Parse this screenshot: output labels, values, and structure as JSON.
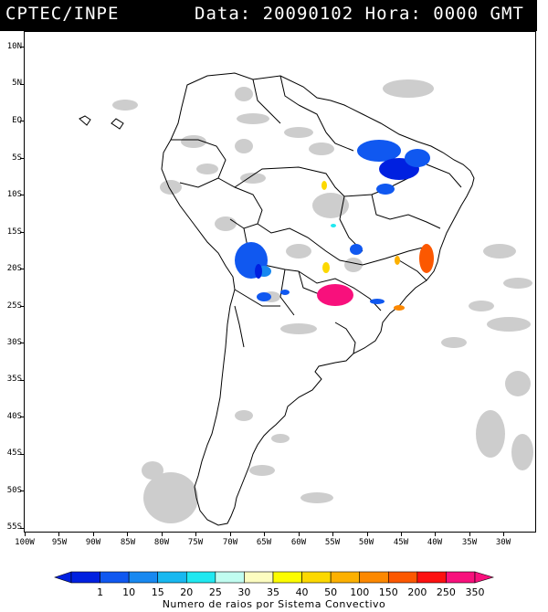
{
  "header": {
    "source": "CPTEC/INPE",
    "date_label": "Data:",
    "date_value": "20090102",
    "hour_label": "Hora:",
    "hour_value": "0000",
    "tz": "GMT"
  },
  "map": {
    "lat_labels": [
      "10N",
      "5N",
      "EQ",
      "5S",
      "10S",
      "15S",
      "20S",
      "25S",
      "30S",
      "35S",
      "40S",
      "45S",
      "50S",
      "55S"
    ],
    "lon_labels": [
      "100W",
      "95W",
      "90W",
      "85W",
      "80W",
      "75W",
      "70W",
      "65W",
      "60W",
      "55W",
      "50W",
      "45W",
      "40W",
      "35W",
      "30W"
    ]
  },
  "legend": {
    "caption": "Numero de raios por Sistema Convectivo",
    "values": [
      "1",
      "10",
      "15",
      "20",
      "25",
      "30",
      "35",
      "40",
      "50",
      "100",
      "150",
      "200",
      "250",
      "350"
    ],
    "colors": [
      "#0020e0",
      "#1058f0",
      "#1888f0",
      "#18b8f0",
      "#20e8f0",
      "#c0fcf0",
      "#fcfcc0",
      "#fcfc00",
      "#fcd800",
      "#fcb000",
      "#fc8800",
      "#fc5800",
      "#fc1010",
      "#f8107c"
    ]
  }
}
